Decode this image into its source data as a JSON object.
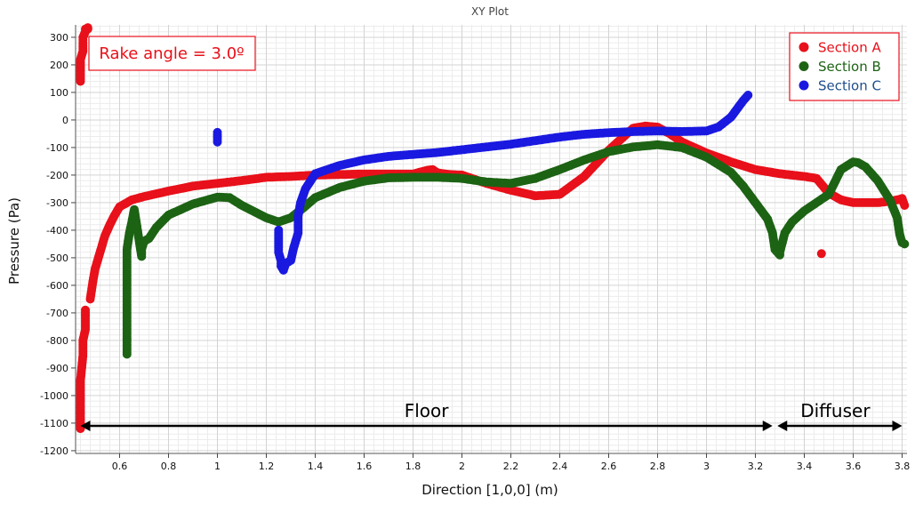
{
  "chart_data": {
    "type": "scatter",
    "title": "XY Plot",
    "xlabel": "Direction [1,0,0] (m)",
    "ylabel": "Pressure (Pa)",
    "xlim": [
      0.42,
      3.82
    ],
    "ylim": [
      -1210,
      345
    ],
    "xticks": [
      0.6,
      0.8,
      1,
      1.2,
      1.4,
      1.6,
      1.8,
      2,
      2.2,
      2.4,
      2.6,
      2.8,
      3,
      3.2,
      3.4,
      3.6,
      3.8
    ],
    "yticks": [
      300,
      200,
      100,
      0,
      -100,
      -200,
      -300,
      -400,
      -500,
      -600,
      -700,
      -800,
      -900,
      -1000,
      -1100,
      -1200
    ],
    "grid": true,
    "legend_position": "top-right",
    "annotation": "Rake angle = 3.0º",
    "regions": [
      {
        "label": "Floor",
        "from": 0.44,
        "to": 3.27
      },
      {
        "label": "Diffuser",
        "from": 3.29,
        "to": 3.8
      }
    ],
    "series": [
      {
        "name": "Section A",
        "color": "#e8101a",
        "x": [
          0.44,
          0.44,
          0.44,
          0.45,
          0.45,
          0.46,
          0.46,
          0.46,
          0.44,
          0.44,
          0.45,
          0.45,
          0.45,
          0.46,
          0.46,
          0.47,
          0.47,
          0.48,
          0.49,
          0.5,
          0.52,
          0.54,
          0.56,
          0.58,
          0.6,
          0.65,
          0.7,
          0.8,
          0.9,
          1.0,
          1.1,
          1.2,
          1.3,
          1.4,
          1.5,
          1.6,
          1.7,
          1.8,
          1.86,
          1.88,
          1.9,
          1.95,
          2.0,
          2.1,
          2.2,
          2.3,
          2.4,
          2.5,
          2.6,
          2.7,
          2.75,
          2.8,
          2.85,
          2.9,
          3.0,
          3.1,
          3.2,
          3.3,
          3.4,
          3.45,
          3.5,
          3.55,
          3.6,
          3.65,
          3.7,
          3.75,
          3.78,
          3.8,
          3.81,
          3.47
        ],
        "y": [
          -1120,
          -1030,
          -945,
          -855,
          -800,
          -760,
          -720,
          -690,
          140,
          220,
          250,
          280,
          300,
          320,
          330,
          335,
          330,
          -650,
          -590,
          -540,
          -480,
          -420,
          -380,
          -345,
          -315,
          -290,
          -278,
          -258,
          -240,
          -230,
          -220,
          -208,
          -205,
          -200,
          -198,
          -196,
          -196,
          -196,
          -182,
          -180,
          -192,
          -198,
          -200,
          -230,
          -255,
          -275,
          -270,
          -205,
          -110,
          -30,
          -22,
          -26,
          -50,
          -80,
          -120,
          -152,
          -180,
          -195,
          -205,
          -212,
          -265,
          -290,
          -300,
          -300,
          -300,
          -295,
          -290,
          -285,
          -310,
          -485
        ]
      },
      {
        "name": "Section B",
        "color": "#1d6314",
        "x": [
          0.63,
          0.63,
          0.63,
          0.63,
          0.64,
          0.65,
          0.66,
          0.69,
          0.69,
          0.7,
          0.72,
          0.75,
          0.8,
          0.9,
          1.0,
          1.05,
          1.1,
          1.2,
          1.25,
          1.3,
          1.35,
          1.4,
          1.5,
          1.6,
          1.7,
          1.8,
          1.9,
          2.0,
          2.1,
          2.2,
          2.3,
          2.4,
          2.5,
          2.6,
          2.7,
          2.8,
          2.9,
          3.0,
          3.1,
          3.15,
          3.2,
          3.25,
          3.27,
          3.28,
          3.3,
          3.3,
          3.32,
          3.35,
          3.4,
          3.45,
          3.5,
          3.55,
          3.6,
          3.62,
          3.65,
          3.7,
          3.75,
          3.78,
          3.79,
          3.8,
          3.81
        ],
        "y": [
          -850,
          -625,
          -510,
          -470,
          -410,
          -370,
          -325,
          -495,
          -470,
          -440,
          -430,
          -390,
          -345,
          -305,
          -280,
          -282,
          -310,
          -355,
          -370,
          -355,
          -320,
          -282,
          -245,
          -222,
          -210,
          -208,
          -208,
          -212,
          -225,
          -230,
          -212,
          -180,
          -145,
          -115,
          -98,
          -90,
          -100,
          -135,
          -190,
          -240,
          -300,
          -360,
          -410,
          -470,
          -490,
          -480,
          -410,
          -370,
          -330,
          -300,
          -270,
          -180,
          -152,
          -155,
          -170,
          -220,
          -290,
          -355,
          -415,
          -445,
          -450
        ]
      },
      {
        "name": "Section C",
        "color": "#1a19e0",
        "x": [
          1.0,
          1.0,
          1.25,
          1.25,
          1.25,
          1.26,
          1.26,
          1.27,
          1.28,
          1.3,
          1.31,
          1.33,
          1.33,
          1.34,
          1.36,
          1.4,
          1.5,
          1.6,
          1.7,
          1.8,
          1.9,
          2.0,
          2.1,
          2.2,
          2.3,
          2.4,
          2.5,
          2.6,
          2.7,
          2.8,
          2.9,
          3.0,
          3.05,
          3.1,
          3.15,
          3.17
        ],
        "y": [
          -45,
          -80,
          -400,
          -440,
          -480,
          -510,
          -530,
          -545,
          -520,
          -510,
          -470,
          -410,
          -350,
          -300,
          -250,
          -195,
          -165,
          -145,
          -132,
          -125,
          -118,
          -108,
          -98,
          -88,
          -75,
          -62,
          -52,
          -46,
          -42,
          -40,
          -42,
          -40,
          -25,
          10,
          70,
          90
        ]
      }
    ]
  }
}
